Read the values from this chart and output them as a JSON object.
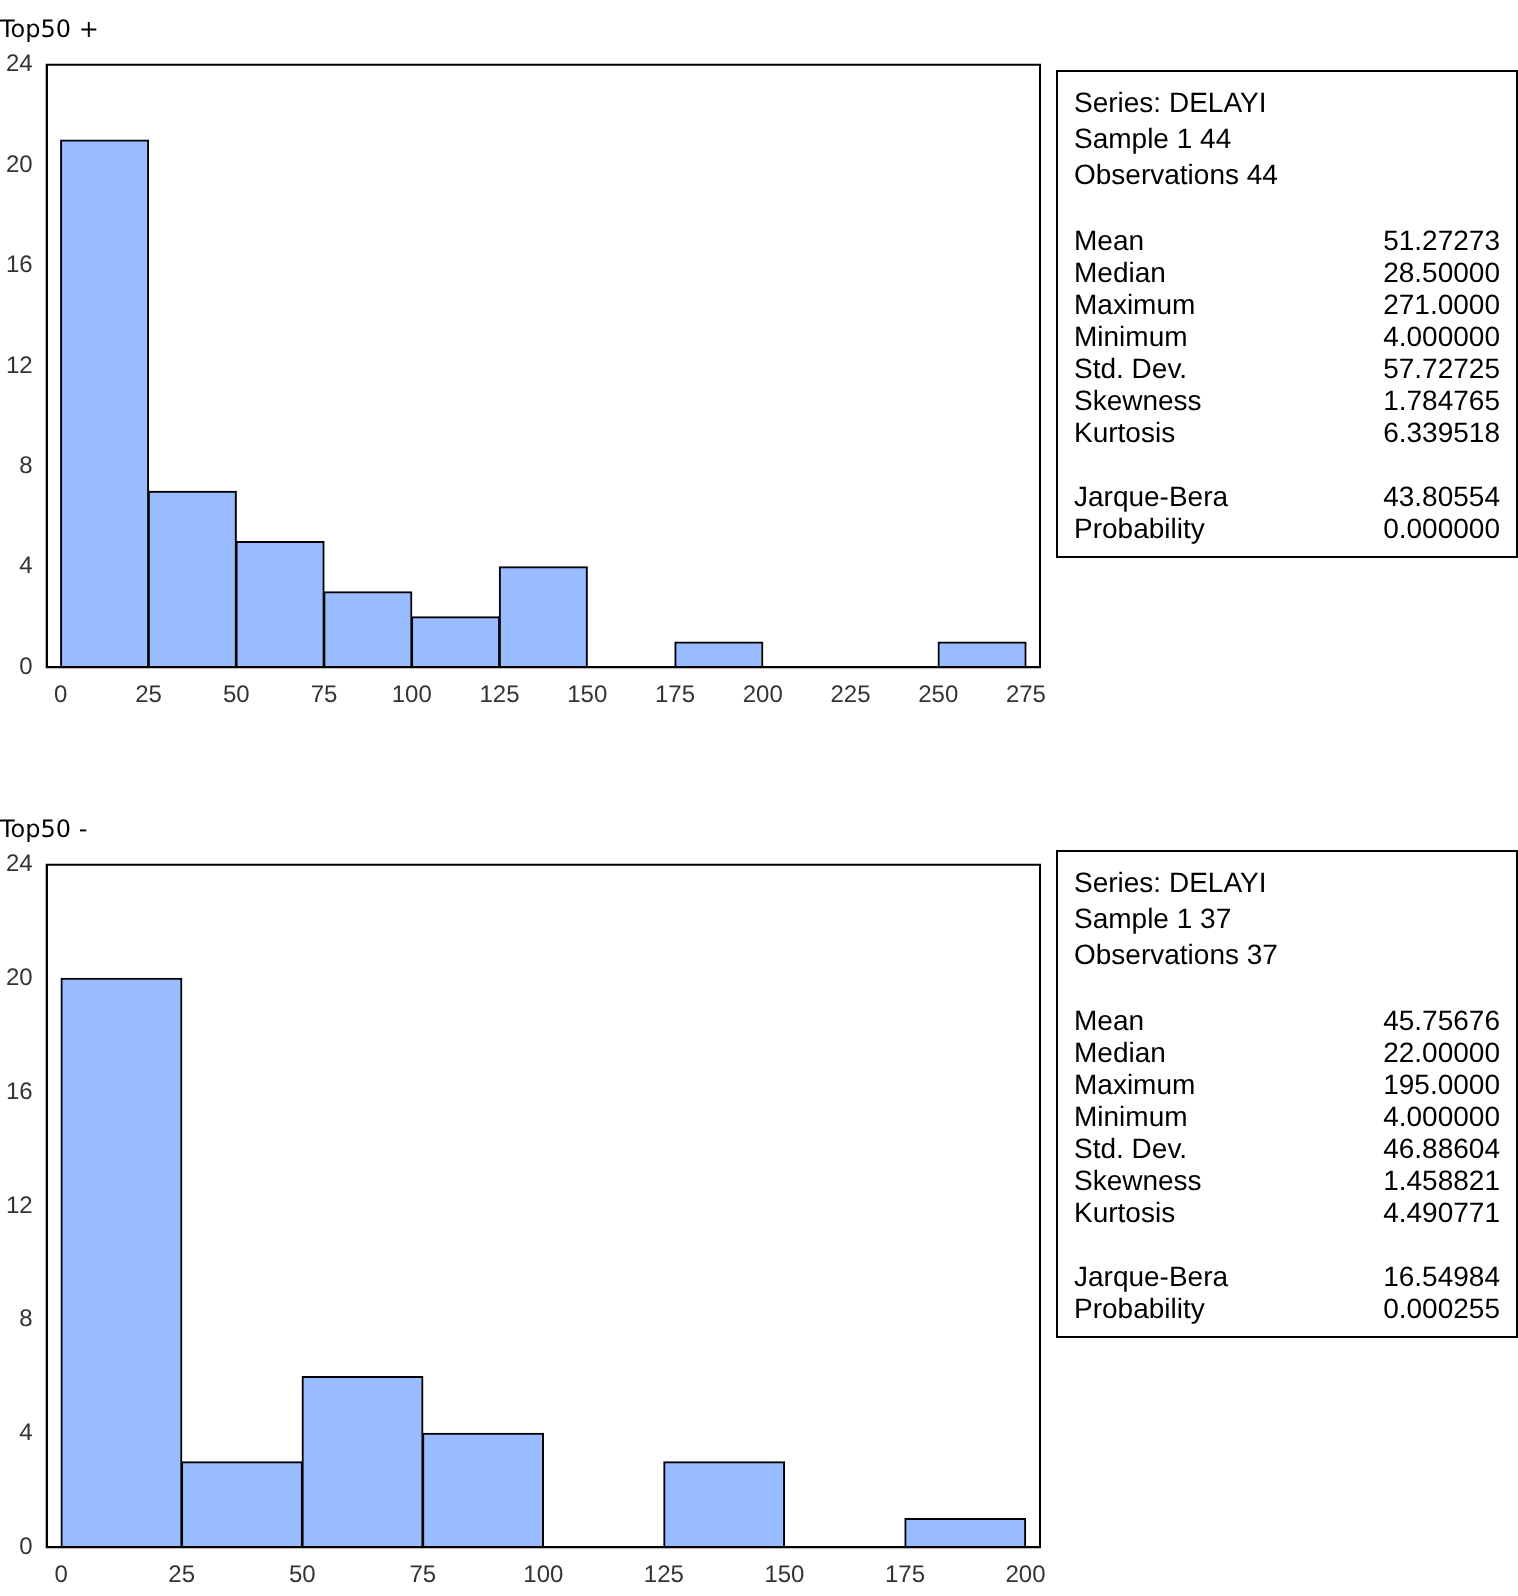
{
  "chart_data": [
    {
      "type": "histogram",
      "title": "Top50 +",
      "bins": [
        0,
        25,
        50,
        75,
        100,
        125,
        150,
        175,
        200,
        225,
        250,
        275
      ],
      "values": [
        21,
        7,
        5,
        3,
        2,
        4,
        0,
        1,
        0,
        0,
        1
      ],
      "color": "#99bbff",
      "xlim": [
        -4,
        279
      ],
      "xticks": [
        0,
        25,
        50,
        75,
        100,
        125,
        150,
        175,
        200,
        225,
        250,
        275
      ],
      "ylim": [
        0,
        24
      ],
      "yticks": [
        0,
        4,
        8,
        12,
        16,
        20,
        24
      ],
      "grid": false,
      "legend": false
    },
    {
      "type": "other",
      "annotations": [
        "Series: DELAYI",
        "Sample 1 44",
        "Observations 44",
        "Mean",
        "51.27273",
        "Median",
        "28.50000",
        "Maximum",
        "271.0000",
        "Minimum",
        "4.000000",
        "Std. Dev.",
        "57.72725",
        "Skewness",
        "1.784765",
        "Kurtosis",
        "6.339518",
        "Jarque-Bera",
        "43.80554",
        "Probability",
        "0.000000"
      ]
    },
    {
      "type": "histogram",
      "title": "Top50 -",
      "bins": [
        0,
        25,
        50,
        75,
        100,
        125,
        150,
        175,
        200
      ],
      "values": [
        20,
        3,
        6,
        4,
        0,
        3,
        0,
        1
      ],
      "color": "#99bbff",
      "xlim": [
        -3,
        203
      ],
      "xticks": [
        0,
        25,
        50,
        75,
        100,
        125,
        150,
        175,
        200
      ],
      "ylim": [
        0,
        24
      ],
      "yticks": [
        0,
        4,
        8,
        12,
        16,
        20,
        24
      ],
      "grid": false,
      "legend": false
    },
    {
      "type": "other",
      "annotations": [
        "Series: DELAYI",
        "Sample 1 37",
        "Observations 37",
        "Mean",
        "45.75676",
        "Median",
        "22.00000",
        "Maximum",
        "195.0000",
        "Minimum",
        "4.000000",
        "Std. Dev.",
        "46.88604",
        "Skewness",
        "1.458821",
        "Kurtosis",
        "4.490771",
        "Jarque-Bera",
        "16.54984",
        "Probability",
        "0.000255"
      ]
    }
  ]
}
